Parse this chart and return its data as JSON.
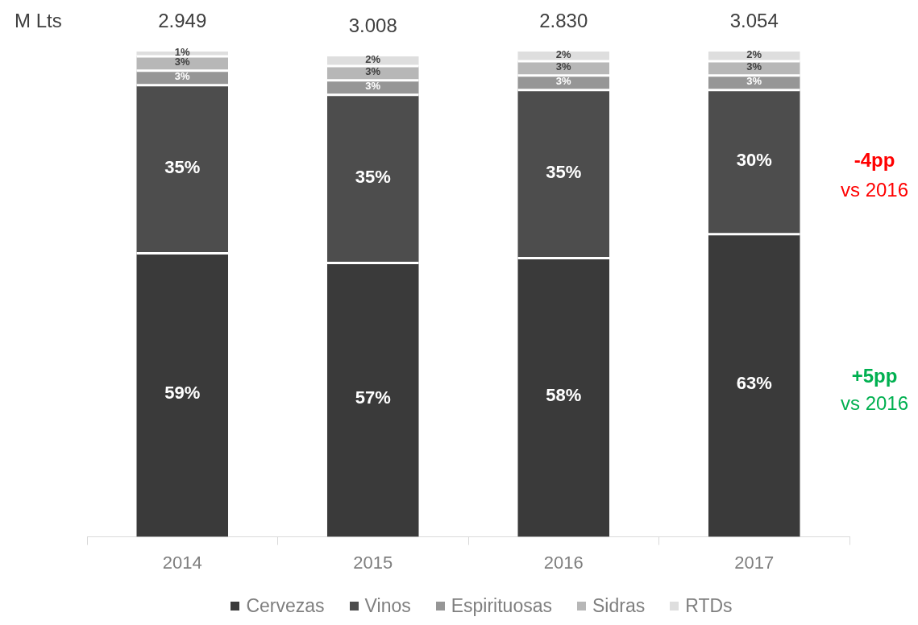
{
  "chart_data": {
    "type": "bar",
    "stacked": true,
    "categories": [
      "2014",
      "2015",
      "2016",
      "2017"
    ],
    "series": [
      {
        "name": "Cervezas",
        "color": "#3a3a3a",
        "values": [
          59,
          57,
          58,
          63
        ],
        "value_labels": [
          "59%",
          "57%",
          "58%",
          "63%"
        ]
      },
      {
        "name": "Vinos",
        "color": "#4d4d4d",
        "values": [
          35,
          35,
          35,
          30
        ],
        "value_labels": [
          "35%",
          "35%",
          "35%",
          "30%"
        ]
      },
      {
        "name": "Espirituosas",
        "color": "#969696",
        "values": [
          3,
          3,
          3,
          3
        ],
        "value_labels": [
          "3%",
          "3%",
          "3%",
          "3%"
        ]
      },
      {
        "name": "Sidras",
        "color": "#b7b7b7",
        "values": [
          3,
          3,
          3,
          3
        ],
        "value_labels": [
          "3%",
          "3%",
          "3%",
          "3%"
        ]
      },
      {
        "name": "RTDs",
        "color": "#dedede",
        "values": [
          1,
          2,
          2,
          2
        ],
        "value_labels": [
          "1%",
          "2%",
          "2%",
          "2%"
        ]
      }
    ],
    "annotations": [
      "M Lts",
      {
        "text": "2.949",
        "x": "2014",
        "y": 101
      },
      {
        "text": "3.008",
        "x": "2015",
        "y": 100
      },
      {
        "text": "2.830",
        "x": "2016",
        "y": 101
      },
      {
        "text": "3.054",
        "x": "2017",
        "y": 101
      },
      "-4pp",
      "vs 2016",
      "+5pp",
      "vs 2016"
    ],
    "legend": "bottom"
  }
}
